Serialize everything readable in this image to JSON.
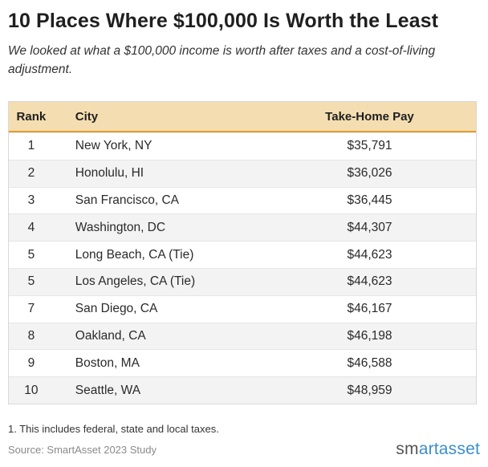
{
  "title": "10 Places Where $100,000 Is Worth the Least",
  "subtitle": "We looked at what a $100,000 income is worth after taxes and a cost-of-living adjustment.",
  "table": {
    "headers": [
      "Rank",
      "City",
      "Take-Home Pay"
    ],
    "rows": [
      {
        "rank": "1",
        "city": "New York, NY",
        "pay": "$35,791"
      },
      {
        "rank": "2",
        "city": "Honolulu, HI",
        "pay": "$36,026"
      },
      {
        "rank": "3",
        "city": "San Francisco, CA",
        "pay": "$36,445"
      },
      {
        "rank": "4",
        "city": "Washington, DC",
        "pay": "$44,307"
      },
      {
        "rank": "5",
        "city": "Long Beach, CA (Tie)",
        "pay": "$44,623"
      },
      {
        "rank": "5",
        "city": "Los Angeles, CA (Tie)",
        "pay": "$44,623"
      },
      {
        "rank": "7",
        "city": "San Diego, CA",
        "pay": "$46,167"
      },
      {
        "rank": "8",
        "city": "Oakland, CA",
        "pay": "$46,198"
      },
      {
        "rank": "9",
        "city": "Boston, MA",
        "pay": "$46,588"
      },
      {
        "rank": "10",
        "city": "Seattle, WA",
        "pay": "$48,959"
      }
    ]
  },
  "footnote": "1. This includes federal, state and local taxes.",
  "source": "Source: SmartAsset 2023 Study",
  "logo": {
    "prefix": "sm",
    "accent": "artasset"
  },
  "colors": {
    "header_bg": "#f4deb1",
    "header_rule": "#e39d2e",
    "alt_row": "#f3f3f3"
  }
}
